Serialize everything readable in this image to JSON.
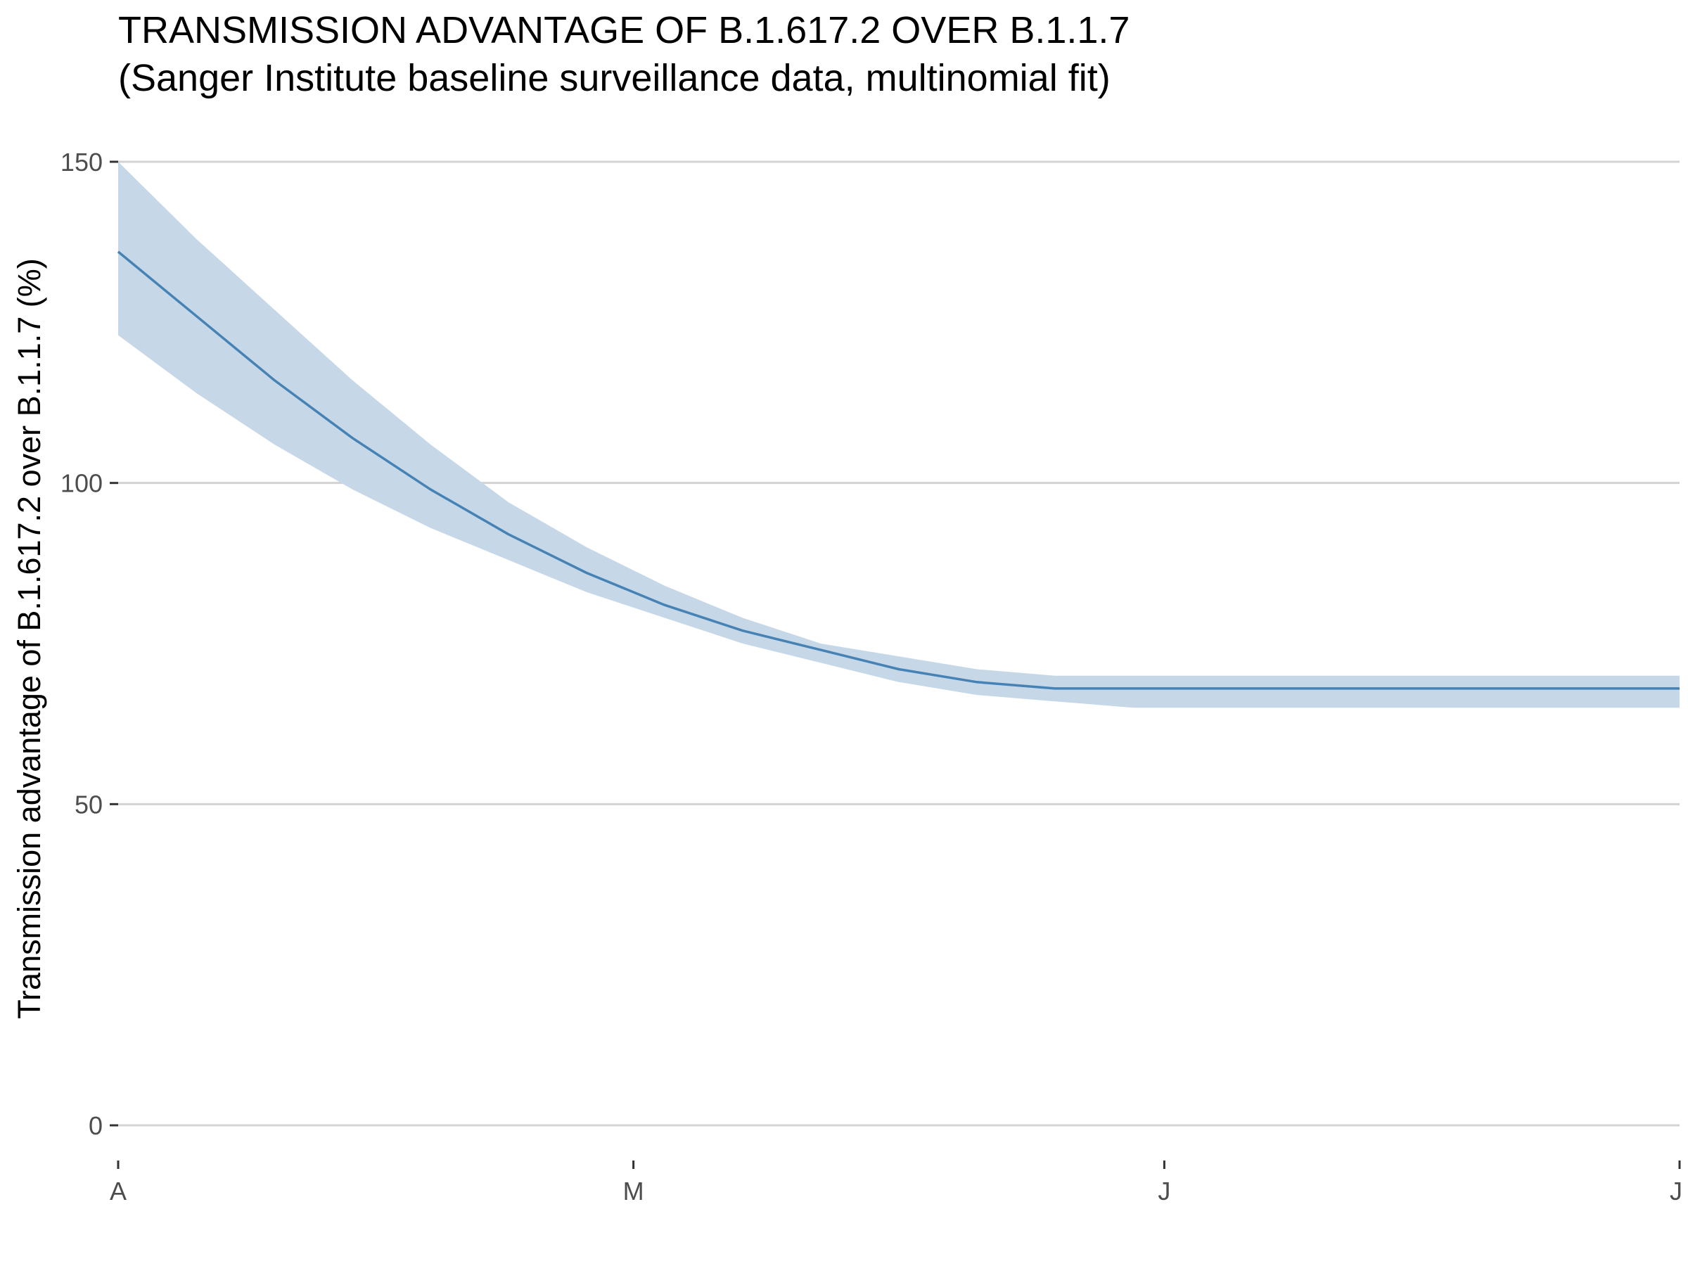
{
  "chart_data": {
    "type": "line",
    "title": "TRANSMISSION ADVANTAGE OF B.1.617.2 OVER B.1.1.7",
    "subtitle": "(Sanger Institute baseline surveillance data, multinomial fit)",
    "xlabel": "",
    "ylabel": "Transmission advantage of B.1.617.2 over B.1.1.7 (%)",
    "ylim": [
      -5,
      155
    ],
    "yticks": [
      0,
      50,
      100,
      150
    ],
    "x_range": [
      0,
      1
    ],
    "xticks": [
      {
        "label": "A",
        "x": 0.0
      },
      {
        "label": "M",
        "x": 0.33
      },
      {
        "label": "J",
        "x": 0.67
      },
      {
        "label": "J",
        "x": 1.0
      }
    ],
    "grid": "horizontal",
    "colors": {
      "line": "#4682b4",
      "band": "#c6d8e8",
      "grid": "#d3d3d3"
    },
    "series": [
      {
        "x": [
          0.0,
          0.05,
          0.1,
          0.15,
          0.2,
          0.25,
          0.3,
          0.35,
          0.4,
          0.45,
          0.5,
          0.55,
          0.6,
          0.65,
          0.7,
          0.75,
          0.8,
          0.85,
          0.9,
          0.95,
          1.0
        ],
        "y": [
          136,
          126,
          116,
          107,
          99,
          92,
          86,
          81,
          77,
          74,
          71,
          69,
          68,
          68,
          68,
          68,
          68,
          68,
          68,
          68,
          68
        ],
        "lower": [
          123,
          114,
          106,
          99,
          93,
          88,
          83,
          79,
          75,
          72,
          69,
          67,
          66,
          65,
          65,
          65,
          65,
          65,
          65,
          65,
          65
        ],
        "upper": [
          150,
          138,
          127,
          116,
          106,
          97,
          90,
          84,
          79,
          75,
          73,
          71,
          70,
          70,
          70,
          70,
          70,
          70,
          70,
          70,
          70
        ]
      }
    ]
  }
}
